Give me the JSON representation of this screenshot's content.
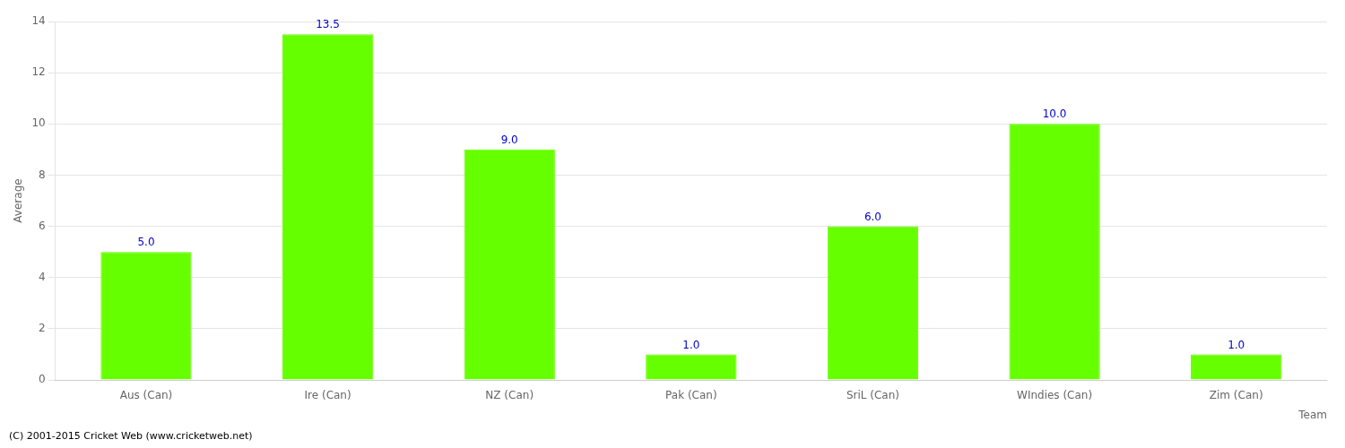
{
  "chart_data": {
    "type": "bar",
    "categories": [
      "Aus (Can)",
      "Ire (Can)",
      "NZ (Can)",
      "Pak (Can)",
      "SriL (Can)",
      "WIndies (Can)",
      "Zim (Can)"
    ],
    "values": [
      5.0,
      13.5,
      9.0,
      1.0,
      6.0,
      10.0,
      1.0
    ],
    "value_labels": [
      "5.0",
      "13.5",
      "9.0",
      "1.0",
      "6.0",
      "10.0",
      "1.0"
    ],
    "color": "#66ff00",
    "xlabel": "Team",
    "ylabel": "Average",
    "ylim": [
      0,
      14
    ],
    "yticks": [
      0,
      2,
      4,
      6,
      8,
      10,
      12,
      14
    ],
    "grid": true,
    "data_labels": true,
    "annotations": [
      "(C) 2001-2015 Cricket Web (www.cricketweb.net)"
    ]
  }
}
